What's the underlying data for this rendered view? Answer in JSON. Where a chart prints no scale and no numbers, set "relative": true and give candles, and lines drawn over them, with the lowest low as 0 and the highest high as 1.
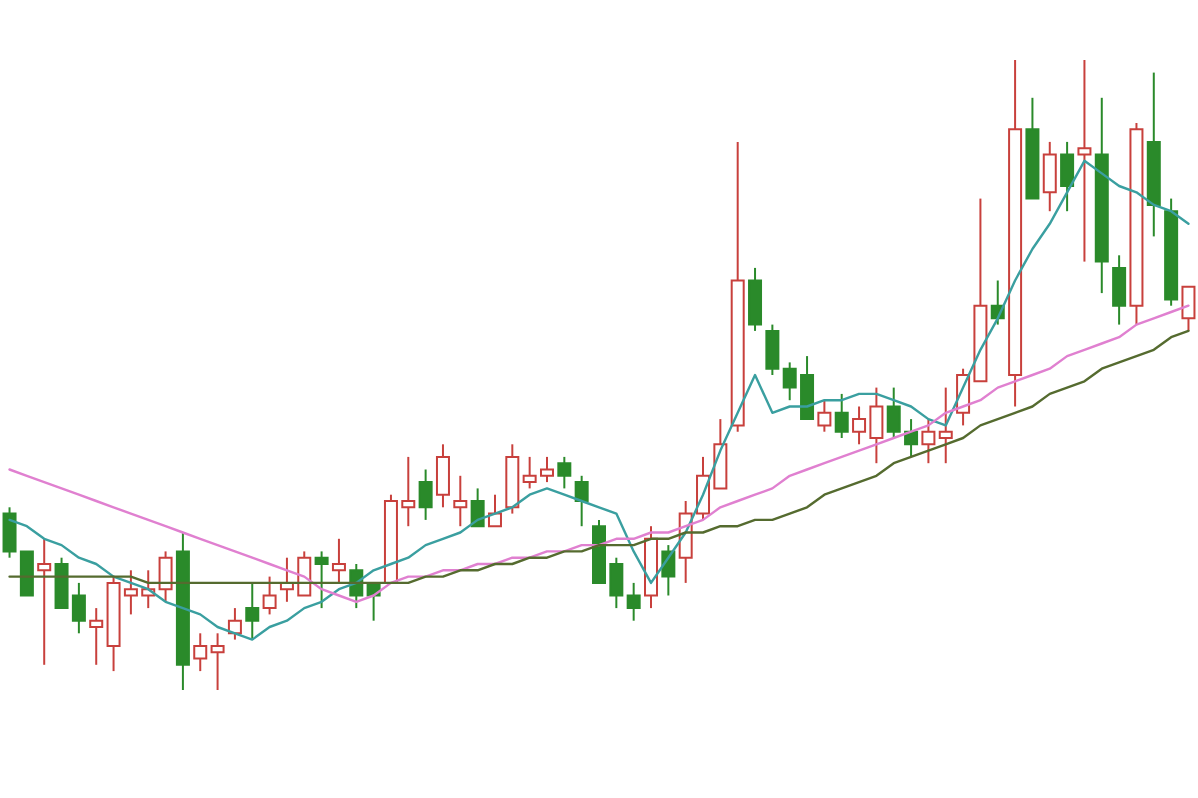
{
  "chart_data": {
    "type": "candlestick",
    "relative": true,
    "categories": [
      null,
      null,
      null,
      null,
      null,
      null,
      null,
      null,
      null,
      null,
      null,
      null,
      null,
      null,
      null,
      null,
      null,
      null,
      null,
      null,
      null,
      null,
      null,
      null,
      null,
      null,
      null,
      null,
      null,
      null,
      null,
      null,
      null,
      null,
      null,
      null,
      null,
      null,
      null,
      null,
      null,
      null,
      null,
      null,
      null,
      null,
      null,
      null,
      null,
      null,
      null,
      null,
      null,
      null,
      null,
      null,
      null,
      null,
      null,
      null,
      null,
      null,
      null,
      null,
      null,
      null,
      null,
      null,
      null
    ],
    "ohlc": [
      [
        0.28,
        0.29,
        0.21,
        0.22
      ],
      [
        0.22,
        0.22,
        0.15,
        0.15
      ],
      [
        0.19,
        0.24,
        0.04,
        0.2
      ],
      [
        0.2,
        0.21,
        0.13,
        0.13
      ],
      [
        0.15,
        0.17,
        0.09,
        0.11
      ],
      [
        0.1,
        0.13,
        0.04,
        0.11
      ],
      [
        0.07,
        0.18,
        0.03,
        0.17
      ],
      [
        0.15,
        0.19,
        0.12,
        0.16
      ],
      [
        0.15,
        0.19,
        0.13,
        0.16
      ],
      [
        0.16,
        0.22,
        0.14,
        0.21
      ],
      [
        0.22,
        0.25,
        0,
        0.04
      ],
      [
        0.05,
        0.09,
        0.03,
        0.07
      ],
      [
        0.06,
        0.09,
        0,
        0.07
      ],
      [
        0.09,
        0.13,
        0.08,
        0.11
      ],
      [
        0.13,
        0.17,
        0.08,
        0.11
      ],
      [
        0.13,
        0.18,
        0.12,
        0.15
      ],
      [
        0.16,
        0.21,
        0.14,
        0.17
      ],
      [
        0.15,
        0.22,
        0.15,
        0.21
      ],
      [
        0.21,
        0.22,
        0.13,
        0.2
      ],
      [
        0.19,
        0.24,
        0.17,
        0.2
      ],
      [
        0.19,
        0.2,
        0.13,
        0.15
      ],
      [
        0.17,
        0.17,
        0.11,
        0.15
      ],
      [
        0.17,
        0.31,
        0.17,
        0.3
      ],
      [
        0.29,
        0.37,
        0.26,
        0.3
      ],
      [
        0.33,
        0.35,
        0.27,
        0.29
      ],
      [
        0.31,
        0.39,
        0.29,
        0.37
      ],
      [
        0.29,
        0.34,
        0.26,
        0.3
      ],
      [
        0.3,
        0.32,
        0.26,
        0.26
      ],
      [
        0.26,
        0.31,
        0.26,
        0.28
      ],
      [
        0.29,
        0.39,
        0.28,
        0.37
      ],
      [
        0.33,
        0.37,
        0.32,
        0.34
      ],
      [
        0.34,
        0.37,
        0.33,
        0.35
      ],
      [
        0.36,
        0.37,
        0.32,
        0.34
      ],
      [
        0.33,
        0.34,
        0.26,
        0.3
      ],
      [
        0.26,
        0.27,
        0.17,
        0.17
      ],
      [
        0.2,
        0.21,
        0.13,
        0.15
      ],
      [
        0.15,
        0.17,
        0.11,
        0.13
      ],
      [
        0.15,
        0.26,
        0.13,
        0.24
      ],
      [
        0.22,
        0.23,
        0.15,
        0.18
      ],
      [
        0.21,
        0.3,
        0.17,
        0.28
      ],
      [
        0.28,
        0.37,
        0.27,
        0.34
      ],
      [
        0.32,
        0.43,
        0.32,
        0.39
      ],
      [
        0.42,
        0.87,
        0.41,
        0.65
      ],
      [
        0.65,
        0.67,
        0.57,
        0.58
      ],
      [
        0.57,
        0.58,
        0.5,
        0.51
      ],
      [
        0.51,
        0.52,
        0.46,
        0.48
      ],
      [
        0.5,
        0.53,
        0.43,
        0.43
      ],
      [
        0.42,
        0.46,
        0.41,
        0.44
      ],
      [
        0.44,
        0.47,
        0.4,
        0.41
      ],
      [
        0.41,
        0.45,
        0.39,
        0.43
      ],
      [
        0.4,
        0.48,
        0.36,
        0.45
      ],
      [
        0.45,
        0.48,
        0.4,
        0.41
      ],
      [
        0.41,
        0.43,
        0.37,
        0.39
      ],
      [
        0.39,
        0.43,
        0.36,
        0.41
      ],
      [
        0.4,
        0.48,
        0.36,
        0.41
      ],
      [
        0.44,
        0.51,
        0.42,
        0.5
      ],
      [
        0.49,
        0.78,
        0.49,
        0.61
      ],
      [
        0.61,
        0.65,
        0.58,
        0.59
      ],
      [
        0.5,
        1,
        0.45,
        0.89
      ],
      [
        0.89,
        0.94,
        0.78,
        0.78
      ],
      [
        0.79,
        0.87,
        0.76,
        0.85
      ],
      [
        0.85,
        0.87,
        0.76,
        0.8
      ],
      [
        0.85,
        1,
        0.68,
        0.86
      ],
      [
        0.85,
        0.94,
        0.63,
        0.68
      ],
      [
        0.67,
        0.69,
        0.58,
        0.61
      ],
      [
        0.61,
        0.9,
        0.58,
        0.89
      ],
      [
        0.87,
        0.98,
        0.72,
        0.77
      ],
      [
        0.76,
        0.78,
        0.61,
        0.62
      ],
      [
        0.59,
        0.64,
        0.57,
        0.64
      ]
    ],
    "colors": [
      "#2a8a2a",
      "#2a8a2a",
      "#c8403c",
      "#2a8a2a",
      "#2a8a2a",
      "#c8403c",
      "#c8403c",
      "#c8403c",
      "#c8403c",
      "#c8403c",
      "#2a8a2a",
      "#c8403c",
      "#c8403c",
      "#c8403c",
      "#2a8a2a",
      "#c8403c",
      "#c8403c",
      "#c8403c",
      "#2a8a2a",
      "#c8403c",
      "#2a8a2a",
      "#2a8a2a",
      "#c8403c",
      "#c8403c",
      "#2a8a2a",
      "#c8403c",
      "#c8403c",
      "#2a8a2a",
      "#c8403c",
      "#c8403c",
      "#c8403c",
      "#c8403c",
      "#2a8a2a",
      "#2a8a2a",
      "#2a8a2a",
      "#2a8a2a",
      "#2a8a2a",
      "#c8403c",
      "#2a8a2a",
      "#c8403c",
      "#c8403c",
      "#c8403c",
      "#c8403c",
      "#2a8a2a",
      "#2a8a2a",
      "#2a8a2a",
      "#2a8a2a",
      "#c8403c",
      "#2a8a2a",
      "#c8403c",
      "#c8403c",
      "#2a8a2a",
      "#2a8a2a",
      "#c8403c",
      "#c8403c",
      "#c8403c",
      "#c8403c",
      "#2a8a2a",
      "#c8403c",
      "#2a8a2a",
      "#c8403c",
      "#2a8a2a",
      "#c8403c",
      "#2a8a2a",
      "#2a8a2a",
      "#c8403c",
      "#2a8a2a",
      "#2a8a2a",
      "#c8403c"
    ],
    "series": [
      {
        "type": "line",
        "color": "#3a9fa0",
        "values": [
          0.27,
          0.26,
          0.24,
          0.23,
          0.21,
          0.2,
          0.18,
          0.17,
          0.16,
          0.14,
          0.13,
          0.12,
          0.1,
          0.09,
          0.08,
          0.1,
          0.11,
          0.13,
          0.14,
          0.16,
          0.17,
          0.19,
          0.2,
          0.21,
          0.23,
          0.24,
          0.25,
          0.27,
          0.28,
          0.29,
          0.31,
          0.32,
          0.31,
          0.3,
          0.29,
          0.28,
          0.22,
          0.17,
          0.21,
          0.25,
          0.31,
          0.38,
          0.44,
          0.5,
          0.44,
          0.45,
          0.45,
          0.46,
          0.46,
          0.47,
          0.47,
          0.46,
          0.45,
          0.43,
          0.42,
          0.48,
          0.54,
          0.59,
          0.65,
          0.7,
          0.74,
          0.79,
          0.84,
          0.82,
          0.8,
          0.79,
          0.77,
          0.76,
          0.74
        ]
      },
      {
        "type": "line",
        "color": "#e080d0",
        "values": [
          0.35,
          0.34,
          0.33,
          0.32,
          0.31,
          0.3,
          0.29,
          0.28,
          0.27,
          0.26,
          0.25,
          0.24,
          0.23,
          0.22,
          0.21,
          0.2,
          0.19,
          0.18,
          0.16,
          0.15,
          0.14,
          0.15,
          0.17,
          0.18,
          0.18,
          0.19,
          0.19,
          0.2,
          0.2,
          0.21,
          0.21,
          0.22,
          0.22,
          0.23,
          0.23,
          0.24,
          0.24,
          0.25,
          0.25,
          0.26,
          0.27,
          0.29,
          0.3,
          0.31,
          0.32,
          0.34,
          0.35,
          0.36,
          0.37,
          0.38,
          0.39,
          0.4,
          0.41,
          0.42,
          0.44,
          0.45,
          0.46,
          0.48,
          0.49,
          0.5,
          0.51,
          0.53,
          0.54,
          0.55,
          0.56,
          0.58,
          0.59,
          0.6,
          0.61
        ]
      },
      {
        "type": "line",
        "color": "#556b2f",
        "values": [
          0.18,
          0.18,
          0.18,
          0.18,
          0.18,
          0.18,
          0.18,
          0.18,
          0.17,
          0.17,
          0.17,
          0.17,
          0.17,
          0.17,
          0.17,
          0.17,
          0.17,
          0.17,
          0.17,
          0.17,
          0.17,
          0.17,
          0.17,
          0.17,
          0.18,
          0.18,
          0.19,
          0.19,
          0.2,
          0.2,
          0.21,
          0.21,
          0.22,
          0.22,
          0.23,
          0.23,
          0.23,
          0.24,
          0.24,
          0.25,
          0.25,
          0.26,
          0.26,
          0.27,
          0.27,
          0.28,
          0.29,
          0.31,
          0.32,
          0.33,
          0.34,
          0.36,
          0.37,
          0.38,
          0.39,
          0.4,
          0.42,
          0.43,
          0.44,
          0.45,
          0.47,
          0.48,
          0.49,
          0.51,
          0.52,
          0.53,
          0.54,
          0.56,
          0.57
        ]
      }
    ]
  }
}
